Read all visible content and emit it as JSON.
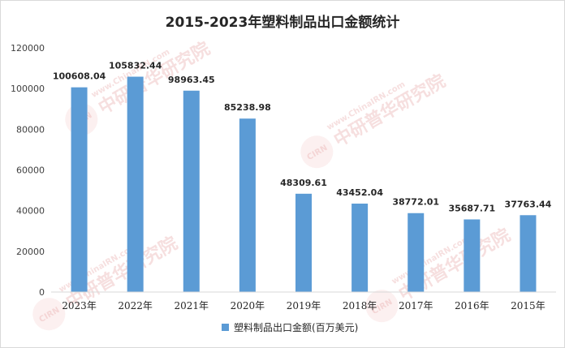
{
  "chart_data": {
    "type": "bar",
    "title": "2015-2023年塑料制品出口金额统计",
    "categories": [
      "2023年",
      "2022年",
      "2021年",
      "2020年",
      "2019年",
      "2018年",
      "2017年",
      "2016年",
      "2015年"
    ],
    "series": [
      {
        "name": "塑料制品出口金额(百万美元)",
        "values": [
          100608.04,
          105832.44,
          98963.45,
          85238.98,
          48309.61,
          43452.04,
          38772.01,
          35687.71,
          37763.44
        ],
        "labels": [
          "100608.04",
          "105832.44",
          "98963.45",
          "85238.98",
          "48309.61",
          "43452.04",
          "38772.01",
          "35687.71",
          "37763.44"
        ],
        "color": "#5b9bd5"
      }
    ],
    "ylim": [
      0,
      120000
    ],
    "yticks": [
      "0",
      "20000",
      "40000",
      "60000",
      "80000",
      "100000",
      "120000"
    ],
    "grid": false,
    "legend": "bottom-center"
  },
  "watermark": {
    "text": "中研普华研究院",
    "url": "www.ChinaIRN.com",
    "logo": "CIRN"
  }
}
